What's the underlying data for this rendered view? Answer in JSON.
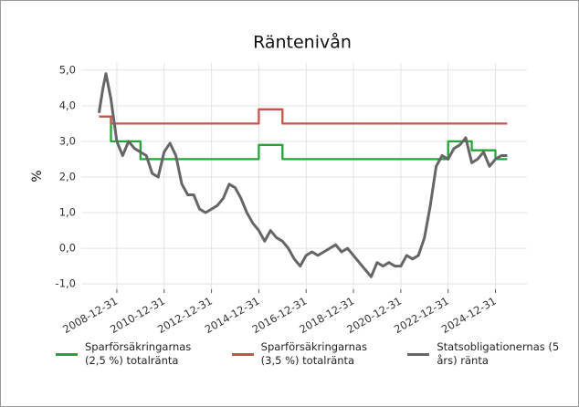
{
  "chart_data": {
    "type": "line",
    "title": "Räntenivån",
    "y_label": "%",
    "ylim": [
      -1.15,
      5.2
    ],
    "yticks": [
      {
        "value": -1,
        "label": "-1,0"
      },
      {
        "value": 0,
        "label": "0,0"
      },
      {
        "value": 1,
        "label": "1,0"
      },
      {
        "value": 2,
        "label": "2,0"
      },
      {
        "value": 3,
        "label": "3,0"
      },
      {
        "value": 4,
        "label": "4,0"
      },
      {
        "value": 5,
        "label": "5,0"
      }
    ],
    "xlim": [
      "2007-07-01",
      "2026-05-01"
    ],
    "xticks": [
      "2008-12-31",
      "2010-12-31",
      "2012-12-31",
      "2014-12-31",
      "2016-12-31",
      "2018-12-31",
      "2020-12-31",
      "2022-12-31",
      "2024-12-31"
    ],
    "grid": true,
    "series": [
      {
        "name": "Sparförsäkringarnas (2,5 %) totalränta",
        "color": "#21a637",
        "x": [
          "2008-04-01",
          "2008-10-01",
          "2008-10-01",
          "2009-12-31",
          "2009-12-31",
          "2014-12-31",
          "2014-12-31",
          "2015-12-31",
          "2015-12-31",
          "2022-12-31",
          "2022-12-31",
          "2023-12-31",
          "2023-12-31",
          "2024-12-31",
          "2024-12-31",
          "2025-06-30"
        ],
        "values": [
          3.7,
          3.7,
          3.0,
          3.0,
          2.5,
          2.5,
          2.9,
          2.9,
          2.5,
          2.5,
          3.0,
          3.0,
          2.75,
          2.75,
          2.5,
          2.5
        ]
      },
      {
        "name": "Sparförsäkringarnas (3,5 %) totalränta",
        "color": "#c9534a",
        "x": [
          "2008-04-01",
          "2008-10-01",
          "2008-10-01",
          "2014-12-31",
          "2014-12-31",
          "2015-12-31",
          "2015-12-31",
          "2025-06-30"
        ],
        "values": [
          3.7,
          3.7,
          3.5,
          3.5,
          3.9,
          3.9,
          3.5,
          3.5
        ]
      },
      {
        "name": "Statsobligationernas (5 års) ränta",
        "color": "#666666",
        "x": [
          "2008-03-31",
          "2008-06-01",
          "2008-07-15",
          "2008-09-30",
          "2008-12-31",
          "2009-03-31",
          "2009-06-30",
          "2009-09-30",
          "2009-12-31",
          "2010-03-31",
          "2010-06-30",
          "2010-09-30",
          "2010-12-31",
          "2011-03-31",
          "2011-06-30",
          "2011-09-30",
          "2011-12-31",
          "2012-03-31",
          "2012-06-30",
          "2012-09-30",
          "2012-12-31",
          "2013-03-31",
          "2013-06-30",
          "2013-09-30",
          "2013-12-31",
          "2014-03-31",
          "2014-06-30",
          "2014-09-30",
          "2014-12-31",
          "2015-03-31",
          "2015-06-30",
          "2015-09-30",
          "2015-12-31",
          "2016-03-31",
          "2016-06-30",
          "2016-09-30",
          "2016-12-31",
          "2017-03-31",
          "2017-06-30",
          "2017-09-30",
          "2017-12-31",
          "2018-03-31",
          "2018-06-30",
          "2018-09-30",
          "2018-12-31",
          "2019-03-31",
          "2019-06-30",
          "2019-09-30",
          "2019-12-31",
          "2020-03-31",
          "2020-06-30",
          "2020-09-30",
          "2020-12-31",
          "2021-03-31",
          "2021-06-30",
          "2021-09-30",
          "2021-12-31",
          "2022-03-31",
          "2022-06-30",
          "2022-09-30",
          "2022-12-31",
          "2023-03-31",
          "2023-06-30",
          "2023-09-30",
          "2023-12-31",
          "2024-03-31",
          "2024-06-30",
          "2024-09-30",
          "2024-12-31",
          "2025-03-31",
          "2025-06-30"
        ],
        "values": [
          3.8,
          4.5,
          4.9,
          4.2,
          3.0,
          2.6,
          3.0,
          2.8,
          2.7,
          2.6,
          2.1,
          2.0,
          2.7,
          2.95,
          2.6,
          1.8,
          1.5,
          1.5,
          1.1,
          1.0,
          1.1,
          1.2,
          1.4,
          1.8,
          1.7,
          1.4,
          1.0,
          0.7,
          0.5,
          0.2,
          0.5,
          0.3,
          0.2,
          0.0,
          -0.3,
          -0.5,
          -0.2,
          -0.1,
          -0.2,
          -0.1,
          0.0,
          0.1,
          -0.1,
          0.0,
          -0.2,
          -0.4,
          -0.6,
          -0.8,
          -0.4,
          -0.5,
          -0.4,
          -0.5,
          -0.5,
          -0.2,
          -0.3,
          -0.2,
          0.3,
          1.2,
          2.3,
          2.6,
          2.5,
          2.8,
          2.9,
          3.1,
          2.4,
          2.5,
          2.7,
          2.3,
          2.5,
          2.6,
          2.6
        ]
      }
    ]
  }
}
